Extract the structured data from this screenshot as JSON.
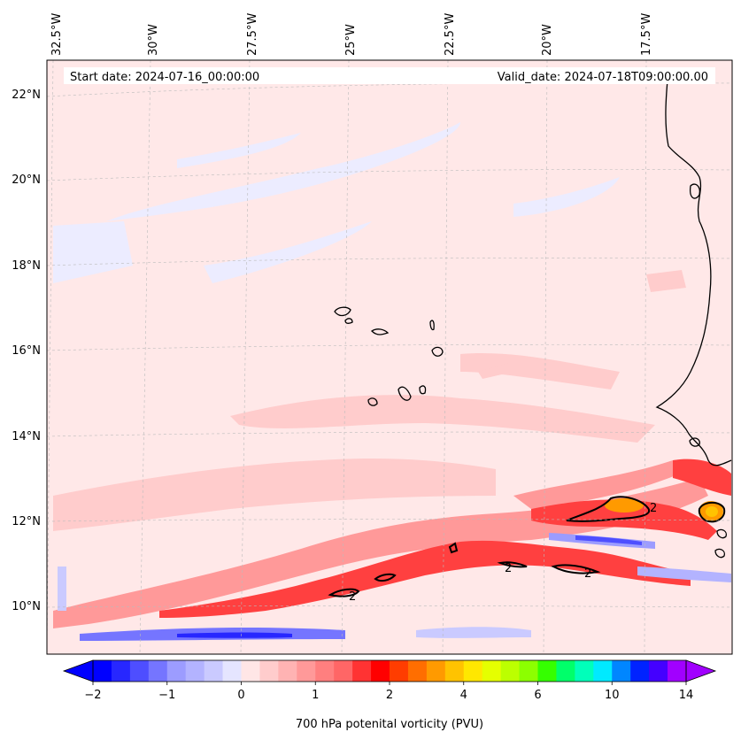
{
  "map": {
    "start_date": "Start date: 2024-07-16_00:00:00",
    "valid_date": "Valid_date: 2024-07-18T09:00:00.00",
    "longitude_labels": [
      "32.5°W",
      "30°W",
      "27.5°W",
      "25°W",
      "22.5°W",
      "20°W",
      "17.5°W"
    ],
    "latitude_labels": [
      "22°N",
      "20°N",
      "18°N",
      "16°N",
      "14°N",
      "12°N",
      "10°N"
    ],
    "contour_label": "2"
  },
  "colorbar": {
    "label": "700 hPa potenital vorticity (PVU)",
    "tick_labels": [
      "−2",
      "−1",
      "0",
      "1",
      "2",
      "4",
      "6",
      "10",
      "14"
    ],
    "colors": [
      "#0000ff",
      "#2727ff",
      "#4e4eff",
      "#7575ff",
      "#9c9cff",
      "#b3b3ff",
      "#cacaff",
      "#e5e5ff",
      "#ffe6e6",
      "#ffcccc",
      "#ffb3b3",
      "#ff9999",
      "#ff7f7f",
      "#ff6666",
      "#ff3333",
      "#ff0000",
      "#ff3d00",
      "#ff6e00",
      "#ff9a00",
      "#ffc300",
      "#ffe700",
      "#e5ff00",
      "#bcff00",
      "#8cff00",
      "#35ff00",
      "#00ff6a",
      "#00ffba",
      "#00eaff",
      "#0086ff",
      "#0023ff",
      "#4400ff",
      "#a100ff"
    ]
  }
}
